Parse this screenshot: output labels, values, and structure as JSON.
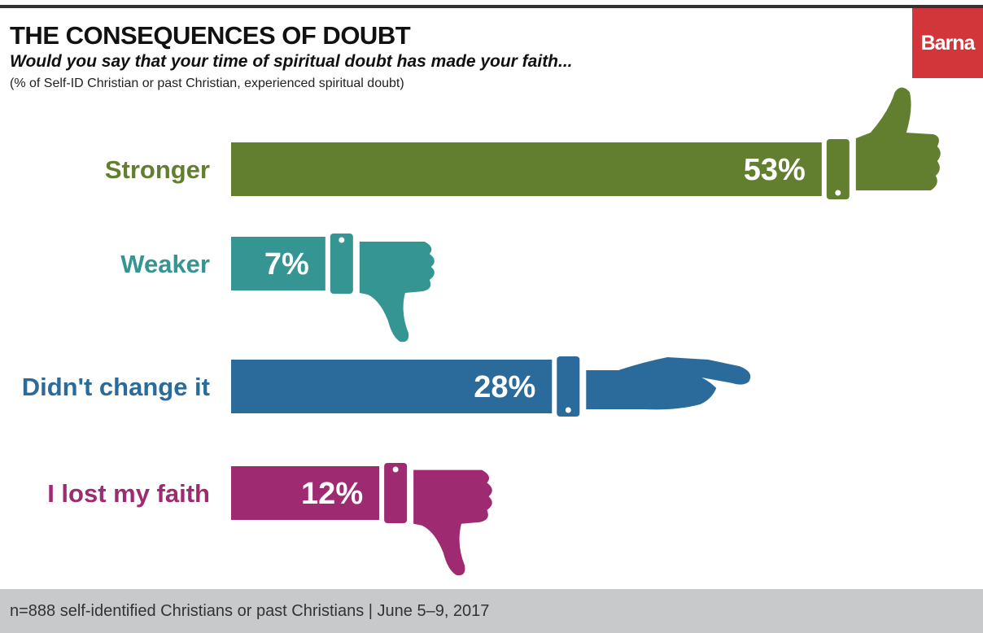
{
  "header": {
    "title": "THE CONSEQUENCES OF DOUBT",
    "subtitle": "Would you say that your time of spiritual doubt has made your faith...",
    "note": "(% of Self-ID Christian or past Christian, experienced spiritual doubt)",
    "logo": "Barna"
  },
  "footer": {
    "text": "n=888 self-identified Christians or past Christians | June 5–9, 2017"
  },
  "chart_data": {
    "type": "bar",
    "orientation": "horizontal",
    "title": "THE CONSEQUENCES OF DOUBT",
    "categories": [
      "Stronger",
      "Weaker",
      "Didn't change it",
      "I lost my faith"
    ],
    "values": [
      53,
      7,
      28,
      12
    ],
    "value_labels": [
      "53%",
      "7%",
      "28%",
      "12%"
    ],
    "colors": [
      "#627f2f",
      "#359593",
      "#2b6b9b",
      "#9e2a72"
    ],
    "icons": [
      "thumbs-up-icon",
      "thumbs-down-icon",
      "open-palm-icon",
      "thumbs-down-icon"
    ],
    "unit": "%"
  }
}
